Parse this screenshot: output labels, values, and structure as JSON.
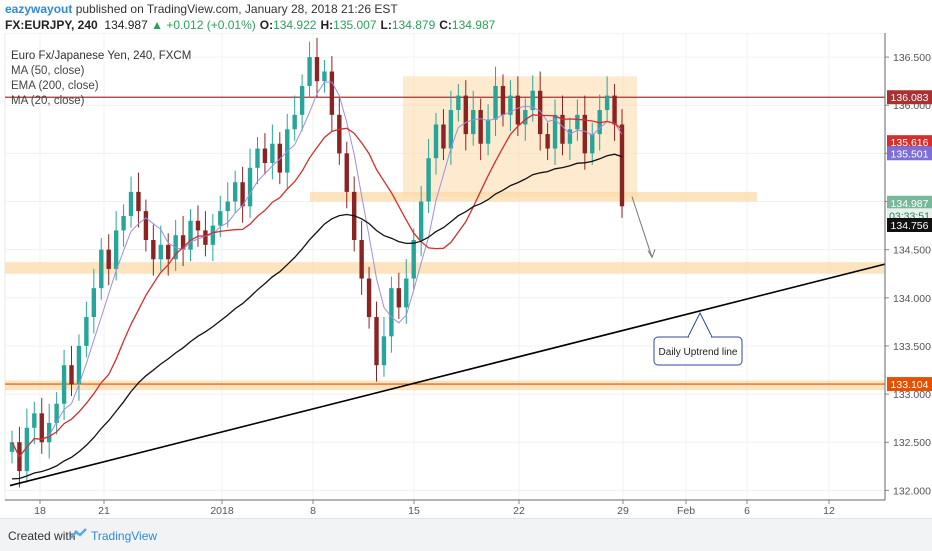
{
  "header": {
    "author": "eazywayout",
    "published_text": " published on TradingView.com, January 28, 2018 21:26 EST",
    "symbol": "FX:EURJPY, 240",
    "last": "134.987",
    "change": "▲ +0.012 (+0.01%)",
    "o_label": "O:",
    "o": "134.922",
    "h_label": "H:",
    "h": "135.007",
    "l_label": "L:",
    "l": "134.879",
    "c_label": "C:",
    "c": "134.987"
  },
  "legend": {
    "title": "Euro Fx/Japanese Yen, 240, FXCM",
    "ma50": "MA (50, close)",
    "ema200": "EMA (200, close)",
    "ma20": "MA (20, close)"
  },
  "annotation": {
    "uptrend_label": "Daily Uptrend line"
  },
  "price_labels": {
    "resistance": "136.083",
    "ma50": "135.616",
    "ma20": "135.501",
    "last": "134.987",
    "countdown": "03:33:51",
    "ema200": "134.756",
    "support": "133.104"
  },
  "colors": {
    "up": "#26a69a",
    "down": "#8b2323",
    "ma50": "#d32f2f",
    "ema200": "#111111",
    "ma20": "#9c8fe0",
    "zone": "#fcd9a8",
    "resistance_line": "#a83232",
    "support_line": "#e65100",
    "last_label": "#78b89a"
  },
  "footer": {
    "created_with": "Created with",
    "brand": "TradingView"
  },
  "chart_data": {
    "type": "candlestick",
    "timeframe": "240",
    "x_ticks": [
      "18",
      "21",
      "2018",
      "8",
      "15",
      "22",
      "29",
      "Feb",
      "6",
      "12"
    ],
    "y_ticks": [
      "132.000",
      "132.500",
      "133.000",
      "133.500",
      "134.000",
      "134.500",
      "135.000",
      "135.500",
      "136.000",
      "136.500"
    ],
    "ylim": [
      131.9,
      136.75
    ],
    "close_series": [
      132.5,
      132.2,
      132.65,
      132.8,
      132.5,
      132.7,
      132.9,
      133.3,
      133.1,
      133.5,
      133.8,
      134.1,
      134.5,
      134.3,
      134.7,
      134.85,
      135.1,
      134.9,
      134.6,
      134.4,
      134.55,
      134.4,
      134.65,
      134.5,
      134.8,
      134.7,
      134.55,
      134.75,
      134.9,
      135.0,
      135.2,
      134.95,
      135.35,
      135.55,
      135.4,
      135.6,
      135.3,
      135.75,
      135.9,
      136.2,
      136.5,
      136.25,
      136.35,
      135.9,
      135.5,
      135.1,
      134.6,
      134.2,
      133.8,
      133.3,
      133.6,
      134.1,
      133.9,
      134.2,
      134.6,
      135.0,
      135.45,
      135.8,
      135.55,
      135.95,
      136.1,
      135.7,
      135.95,
      135.6,
      135.85,
      136.2,
      135.9,
      136.1,
      135.8,
      135.95,
      136.15,
      135.7,
      135.55,
      135.9,
      135.6,
      135.75,
      135.9,
      135.5,
      135.7,
      135.95,
      136.1,
      135.8,
      134.95
    ],
    "ma50_last": 135.616,
    "ma20_last": 135.501,
    "ema200_last": 134.756,
    "last_price": 134.987,
    "horizontal_lines": [
      {
        "name": "resistance",
        "value": 136.083
      },
      {
        "name": "support",
        "value": 133.104
      }
    ],
    "zones": [
      {
        "name": "range-box",
        "from": 135.05,
        "to": 136.3
      },
      {
        "name": "zone-upper",
        "from": 135.0,
        "to": 135.1
      },
      {
        "name": "zone-middle",
        "from": 134.25,
        "to": 134.37
      },
      {
        "name": "zone-lower",
        "from": 133.04,
        "to": 133.14
      }
    ],
    "trendline": {
      "label": "Daily Uptrend line",
      "from": 132.05,
      "to": 134.35
    }
  }
}
